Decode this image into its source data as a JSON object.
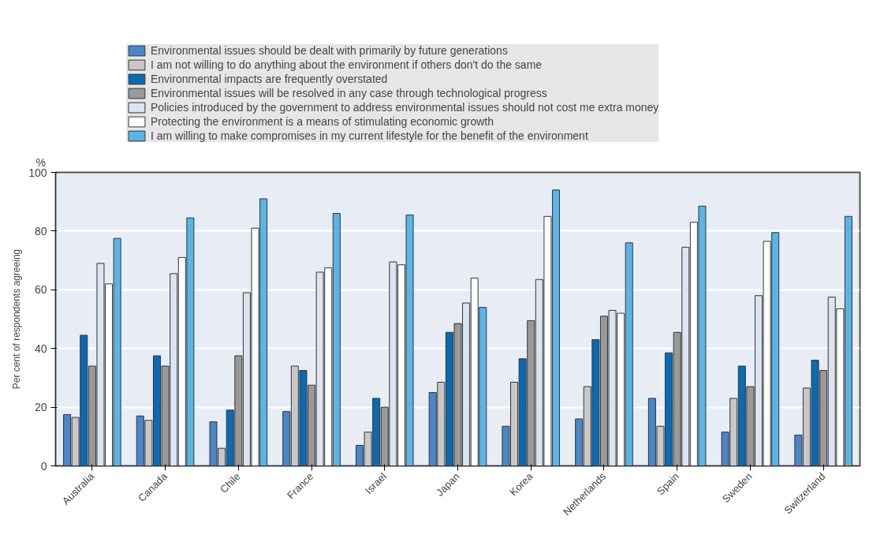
{
  "chart_data": {
    "type": "bar",
    "categories": [
      "Australia",
      "Canada",
      "Chile",
      "France",
      "Israel",
      "Japan",
      "Korea",
      "Netherlands",
      "Spain",
      "Sweden",
      "Switzerland"
    ],
    "series": [
      {
        "name": "Environmental issues should be dealt with primarily by future generations",
        "color": "#4a86c8",
        "values": [
          17.5,
          17,
          15,
          18.5,
          7,
          25,
          13.5,
          16,
          23,
          11.5,
          10.5
        ]
      },
      {
        "name": "I am not willing to do anything about the environment if others don't do the same",
        "color": "#c8c8c8",
        "values": [
          16.5,
          15.5,
          6,
          34,
          11.5,
          28.5,
          28.5,
          27,
          13.5,
          23,
          26.5
        ]
      },
      {
        "name": "Environmental impacts are frequently overstated",
        "color": "#0a6ab4",
        "values": [
          44.5,
          37.5,
          19,
          32.5,
          23,
          45.5,
          36.5,
          43,
          38.5,
          34,
          36
        ]
      },
      {
        "name": "Environmental issues will be resolved in any case through technological progress",
        "color": "#999999",
        "values": [
          34,
          34,
          37.5,
          27.5,
          20,
          48.5,
          49.5,
          51,
          45.5,
          27,
          32.5
        ]
      },
      {
        "name": "Policies introduced by the government to address environmental issues should not cost me extra money",
        "color": "#dce4f2",
        "values": [
          69,
          65.5,
          59,
          66,
          69.5,
          55.5,
          63.5,
          53,
          74.5,
          58,
          57.5
        ]
      },
      {
        "name": "Protecting the environment is a means of stimulating economic growth",
        "color": "#ffffff",
        "values": [
          62,
          71,
          81,
          67.5,
          68.5,
          64,
          85,
          52,
          83,
          76.5,
          53.5
        ]
      },
      {
        "name": "I am willing to make compromises in my current lifestyle for the benefit of the environment",
        "color": "#5bb4e6",
        "values": [
          77.5,
          84.5,
          91,
          86,
          85.5,
          54,
          94,
          76,
          88.5,
          79.5,
          85
        ]
      }
    ],
    "ylabel": "Per cent of respondents agreeing",
    "annotations": [
      "%"
    ],
    "ylim": [
      0,
      100
    ],
    "yticks": [
      0,
      20,
      40,
      60,
      80,
      100
    ],
    "grid": "y",
    "legend": "top"
  }
}
